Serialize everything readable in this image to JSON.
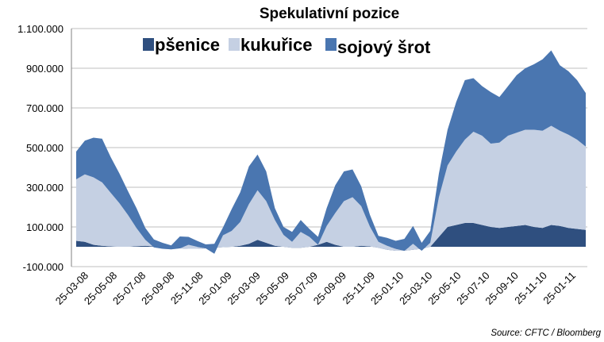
{
  "chart_data": {
    "type": "area",
    "stacked": true,
    "title": "Spekulativní pozice",
    "source": "Source: CFTC / Bloomberg",
    "ylim": [
      -100000,
      1100000
    ],
    "yticks": [
      "1.100.000",
      "900.000",
      "700.000",
      "500.000",
      "300.000",
      "100.000",
      "-100.000"
    ],
    "ytick_values": [
      1100000,
      900000,
      700000,
      500000,
      300000,
      100000,
      -100000
    ],
    "grid": "horizontal",
    "legend_placement": "top",
    "xticks": [
      "25-03-08",
      "25-05-08",
      "25-07-08",
      "25-09-08",
      "25-11-08",
      "25-01-09",
      "25-03-09",
      "25-05-09",
      "25-07-09",
      "25-09-09",
      "25-11-09",
      "25-01-10",
      "25-03-10",
      "25-05-10",
      "25-07-10",
      "25-09-10",
      "25-11-10",
      "25-01-11"
    ],
    "x_range": [
      0,
      36
    ],
    "series": [
      {
        "name": "pšenice",
        "color": "#2f4f7f",
        "values": [
          30000,
          25000,
          10000,
          5000,
          2000,
          0,
          0,
          3000,
          5000,
          2000,
          0,
          -5000,
          -8000,
          -10000,
          -10000,
          -8000,
          -5000,
          -2000,
          0,
          5000,
          15000,
          35000,
          20000,
          5000,
          0,
          -5000,
          -5000,
          0,
          10000,
          25000,
          10000,
          0,
          0,
          5000,
          2000,
          -5000,
          -15000,
          -20000,
          -20000,
          -15000,
          -10000,
          0,
          50000,
          100000,
          110000,
          120000,
          120000,
          110000,
          100000,
          95000,
          100000,
          105000,
          110000,
          100000,
          95000,
          110000,
          105000,
          95000,
          90000,
          85000
        ]
      },
      {
        "name": "kukuřice",
        "color": "#c5d0e3",
        "values": [
          310000,
          340000,
          340000,
          320000,
          270000,
          220000,
          160000,
          90000,
          30000,
          -5000,
          -10000,
          -8000,
          0,
          20000,
          10000,
          0,
          -30000,
          60000,
          80000,
          120000,
          200000,
          250000,
          210000,
          130000,
          60000,
          30000,
          80000,
          50000,
          0,
          80000,
          160000,
          230000,
          250000,
          200000,
          100000,
          30000,
          20000,
          10000,
          0,
          30000,
          -10000,
          20000,
          200000,
          310000,
          370000,
          420000,
          460000,
          450000,
          420000,
          430000,
          460000,
          470000,
          480000,
          490000,
          490000,
          500000,
          480000,
          470000,
          450000,
          420000
        ]
      },
      {
        "name": "sojový šrot",
        "color": "#4a76b0",
        "values": [
          140000,
          170000,
          200000,
          220000,
          180000,
          150000,
          120000,
          100000,
          60000,
          40000,
          30000,
          20000,
          60000,
          40000,
          30000,
          20000,
          50000,
          40000,
          110000,
          150000,
          190000,
          180000,
          150000,
          60000,
          40000,
          50000,
          60000,
          40000,
          40000,
          90000,
          140000,
          150000,
          140000,
          100000,
          60000,
          30000,
          40000,
          40000,
          60000,
          90000,
          40000,
          60000,
          120000,
          180000,
          250000,
          300000,
          270000,
          250000,
          260000,
          230000,
          250000,
          290000,
          310000,
          330000,
          360000,
          380000,
          330000,
          320000,
          300000,
          270000
        ]
      }
    ]
  }
}
